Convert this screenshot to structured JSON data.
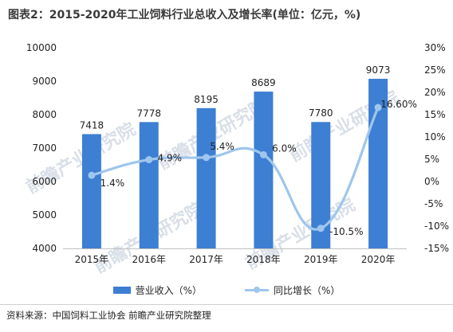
{
  "title": "图表2：2015-2020年工业饲料行业总收入及增长率(单位：亿元，%)",
  "source": "资料来源：中国饲料工业协会 前瞻产业研究院整理",
  "watermark_text": "前瞻产业研究院",
  "colors": {
    "bar": "#3d7fd3",
    "line": "#9fc6ec",
    "axis": "#bfbfbf",
    "text": "#222222"
  },
  "chart_data": {
    "type": "bar",
    "categories": [
      "2015年",
      "2016年",
      "2017年",
      "2018年",
      "2019年",
      "2020年"
    ],
    "series": [
      {
        "name": "营业收入（%）",
        "type": "bar",
        "axis": "left",
        "values": [
          7418,
          7778,
          8195,
          8689,
          7780,
          9073
        ],
        "data_labels": [
          "7418",
          "7778",
          "8195",
          "8689",
          "7780",
          "9073"
        ]
      },
      {
        "name": "同比增长（%）",
        "type": "line",
        "axis": "right",
        "values": [
          1.4,
          4.9,
          5.4,
          6.0,
          -10.5,
          16.6
        ],
        "data_labels": [
          "1.4%",
          "4.9%",
          "5.4%",
          "6.0%",
          "-10.5%",
          "16.60%"
        ]
      }
    ],
    "y_left": {
      "min": 4000,
      "max": 10000,
      "ticks": [
        "4000",
        "5000",
        "6000",
        "7000",
        "8000",
        "9000",
        "10000"
      ]
    },
    "y_right": {
      "min": -15,
      "max": 30,
      "ticks": [
        "-15%",
        "-10%",
        "-5%",
        "0%",
        "5%",
        "10%",
        "15%",
        "20%",
        "25%",
        "30%"
      ]
    },
    "legend_position": "bottom",
    "grid": false
  }
}
